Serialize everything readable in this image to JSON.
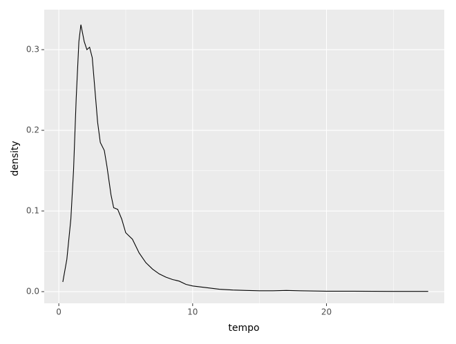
{
  "chart_data": {
    "type": "line",
    "x_label": "tempo",
    "y_label": "density",
    "series": [
      {
        "color": "#000000",
        "x": [
          0.3,
          0.6,
          0.9,
          1.1,
          1.3,
          1.5,
          1.65,
          1.9,
          2.1,
          2.3,
          2.5,
          2.7,
          2.9,
          3.1,
          3.4,
          3.6,
          3.9,
          4.1,
          4.4,
          4.7,
          5.0,
          5.5,
          6.0,
          6.5,
          7.0,
          7.5,
          8.0,
          8.5,
          9.0,
          9.5,
          10,
          11,
          12,
          13,
          14,
          15,
          16,
          17,
          18,
          20,
          22,
          25,
          27.6
        ],
        "values": [
          0.012,
          0.04,
          0.09,
          0.15,
          0.24,
          0.31,
          0.331,
          0.31,
          0.3,
          0.303,
          0.29,
          0.25,
          0.21,
          0.185,
          0.175,
          0.155,
          0.12,
          0.104,
          0.102,
          0.09,
          0.073,
          0.065,
          0.048,
          0.036,
          0.028,
          0.022,
          0.018,
          0.015,
          0.013,
          0.009,
          0.007,
          0.005,
          0.003,
          0.002,
          0.0015,
          0.001,
          0.001,
          0.0015,
          0.001,
          0.0005,
          0.0005,
          0.0003,
          0.0003
        ]
      }
    ],
    "xlim": [
      -1.09,
      28.8
    ],
    "ylim": [
      -0.0145,
      0.3496
    ],
    "xticks": [
      0,
      10,
      20
    ],
    "x_minor_ticks": [
      5,
      15,
      25
    ],
    "yticks": [
      {
        "value": 0,
        "label": "0.0"
      },
      0.1,
      0.2,
      0.3
    ],
    "y_minor_ticks": [
      0.05,
      0.15,
      0.25
    ],
    "grid": true,
    "panel_color": "#ebebeb",
    "grid_color": "#ffffff"
  }
}
